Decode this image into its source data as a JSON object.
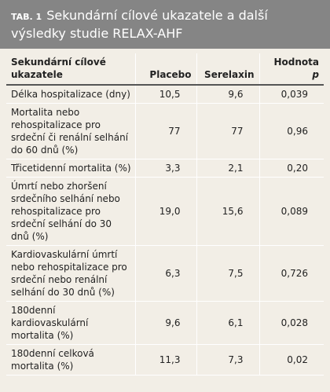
{
  "header": {
    "label": "TAB. 1",
    "title": "Sekundární cílové ukazatele a další výsledky studie RELAX-AHF"
  },
  "table": {
    "columns": [
      "Sekundární cílové ukazatele",
      "Placebo",
      "Serelaxin",
      {
        "text": "Hodnota",
        "var": "p"
      }
    ],
    "rows": [
      [
        "Délka hospitalizace (dny)",
        "10,5",
        "9,6",
        "0,039"
      ],
      [
        "Mortalita nebo rehospitalizace pro srdeční či renální selhání do 60 dnů (%)",
        "77",
        "77",
        "0,96"
      ],
      [
        "Třicetidenní mortalita (%)",
        "3,3",
        "2,1",
        "0,20"
      ],
      [
        "Úmrtí nebo zhoršení srdečního selhání nebo rehospitalizace pro srdeční selhání do 30 dnů (%)",
        "19,0",
        "15,6",
        "0,089"
      ],
      [
        "Kardiovaskulární úmrtí nebo rehospitalizace pro srdeční nebo renální selhání do 30 dnů (%)",
        "6,3",
        "7,5",
        "0,726"
      ],
      [
        "180denní kardiovaskulární mortalita (%)",
        "9,6",
        "6,1",
        "0,028"
      ],
      [
        "180denní celková mortalita (%)",
        "11,3",
        "7,3",
        "0,02"
      ]
    ]
  }
}
